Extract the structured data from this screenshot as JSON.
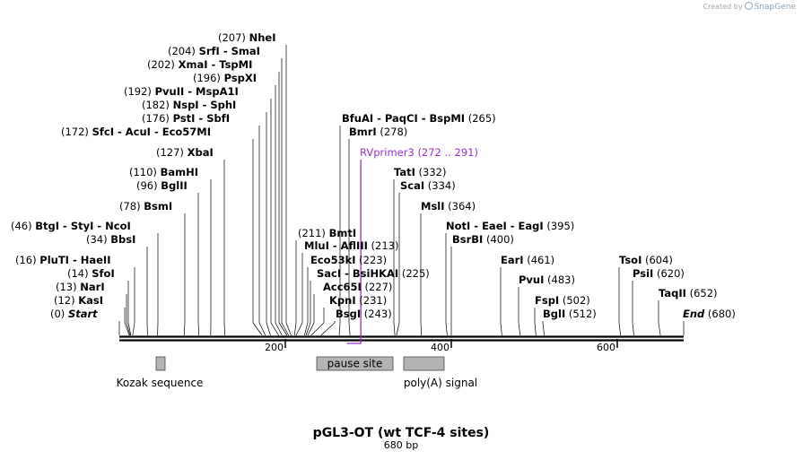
{
  "credit": {
    "prefix": "Created by",
    "brand": "SnapGene"
  },
  "map": {
    "title": "pGL3-OT (wt TCF-4 sites)",
    "length_label": "680 bp",
    "length": 680,
    "ticks": [
      {
        "value": 200,
        "label": "200"
      },
      {
        "value": 400,
        "label": "400"
      },
      {
        "value": 600,
        "label": "600"
      }
    ]
  },
  "sites": [
    {
      "pos": "(207)",
      "names": [
        "NheI"
      ],
      "site": 207
    },
    {
      "pos": "(204)",
      "names": [
        "SrfI",
        "SmaI"
      ],
      "site": 204
    },
    {
      "pos": "(202)",
      "names": [
        "XmaI",
        "TspMI"
      ],
      "site": 202
    },
    {
      "pos": "(196)",
      "names": [
        "PspXI"
      ],
      "site": 196
    },
    {
      "pos": "(192)",
      "names": [
        "PvuII",
        "MspA1I"
      ],
      "site": 192
    },
    {
      "pos": "(182)",
      "names": [
        "NspI",
        "SphI"
      ],
      "site": 182
    },
    {
      "pos": "(176)",
      "names": [
        "PstI",
        "SbfI"
      ],
      "site": 176
    },
    {
      "pos": "(172)",
      "names": [
        "SfcI",
        "AcuI",
        "Eco57MI"
      ],
      "site": 172
    },
    {
      "pos": "(127)",
      "names": [
        "XbaI"
      ],
      "site": 127
    },
    {
      "pos": "(110)",
      "names": [
        "BamHI"
      ],
      "site": 110
    },
    {
      "pos": "(96)",
      "names": [
        "BglII"
      ],
      "site": 96
    },
    {
      "pos": "(78)",
      "names": [
        "BsmI"
      ],
      "site": 78
    },
    {
      "pos": "(46)",
      "names": [
        "BtgI",
        "StyI",
        "NcoI"
      ],
      "site": 46
    },
    {
      "pos": "(34)",
      "names": [
        "BbsI"
      ],
      "site": 34
    },
    {
      "pos": "(16)",
      "names": [
        "PluTI",
        "HaeII"
      ],
      "site": 16
    },
    {
      "pos": "(14)",
      "names": [
        "SfoI"
      ],
      "site": 14
    },
    {
      "pos": "(13)",
      "names": [
        "NarI"
      ],
      "site": 13
    },
    {
      "pos": "(12)",
      "names": [
        "KasI"
      ],
      "site": 12
    },
    {
      "pos": "(0)",
      "names": [
        "Start"
      ],
      "site": 0
    },
    {
      "pos": "(265)",
      "names": [
        "BfuAI",
        "PaqCI",
        "BspMI"
      ],
      "site": 265
    },
    {
      "pos": "(278)",
      "names": [
        "BmrI"
      ],
      "site": 278
    },
    {
      "pos": "(211)",
      "names": [
        "BmtI"
      ],
      "site": 211
    },
    {
      "pos": "(213)",
      "names": [
        "MluI",
        "AflIII"
      ],
      "site": 213
    },
    {
      "pos": "(223)",
      "names": [
        "Eco53kI"
      ],
      "site": 223
    },
    {
      "pos": "(225)",
      "names": [
        "SacI",
        "BsiHKAI"
      ],
      "site": 225
    },
    {
      "pos": "(227)",
      "names": [
        "Acc65I"
      ],
      "site": 227
    },
    {
      "pos": "(231)",
      "names": [
        "KpnI"
      ],
      "site": 231
    },
    {
      "pos": "(243)",
      "names": [
        "BsgI"
      ],
      "site": 243
    },
    {
      "pos": "(332)",
      "names": [
        "TatI"
      ],
      "site": 332
    },
    {
      "pos": "(334)",
      "names": [
        "ScaI"
      ],
      "site": 334
    },
    {
      "pos": "(364)",
      "names": [
        "MslI"
      ],
      "site": 364
    },
    {
      "pos": "(395)",
      "names": [
        "NotI",
        "EaeI",
        "EagI"
      ],
      "site": 395
    },
    {
      "pos": "(400)",
      "names": [
        "BsrBI"
      ],
      "site": 400
    },
    {
      "pos": "(461)",
      "names": [
        "EarI"
      ],
      "site": 461
    },
    {
      "pos": "(483)",
      "names": [
        "PvuI"
      ],
      "site": 483
    },
    {
      "pos": "(502)",
      "names": [
        "FspI"
      ],
      "site": 502
    },
    {
      "pos": "(512)",
      "names": [
        "BglI"
      ],
      "site": 512
    },
    {
      "pos": "(604)",
      "names": [
        "TsoI"
      ],
      "site": 604
    },
    {
      "pos": "(620)",
      "names": [
        "PsiI"
      ],
      "site": 620
    },
    {
      "pos": "(652)",
      "names": [
        "TaqII"
      ],
      "site": 652
    },
    {
      "pos": "(680)",
      "names": [
        "End"
      ],
      "site": 680
    }
  ],
  "primer": {
    "name": "RVprimer3",
    "range": "(272 .. 291)",
    "start": 272,
    "end": 291
  },
  "features": [
    {
      "name": "Kozak sequence",
      "start": 44,
      "end": 55
    },
    {
      "name": "pause site",
      "start": 238,
      "end": 330
    },
    {
      "name": "poly(A) signal",
      "start": 343,
      "end": 392
    }
  ]
}
